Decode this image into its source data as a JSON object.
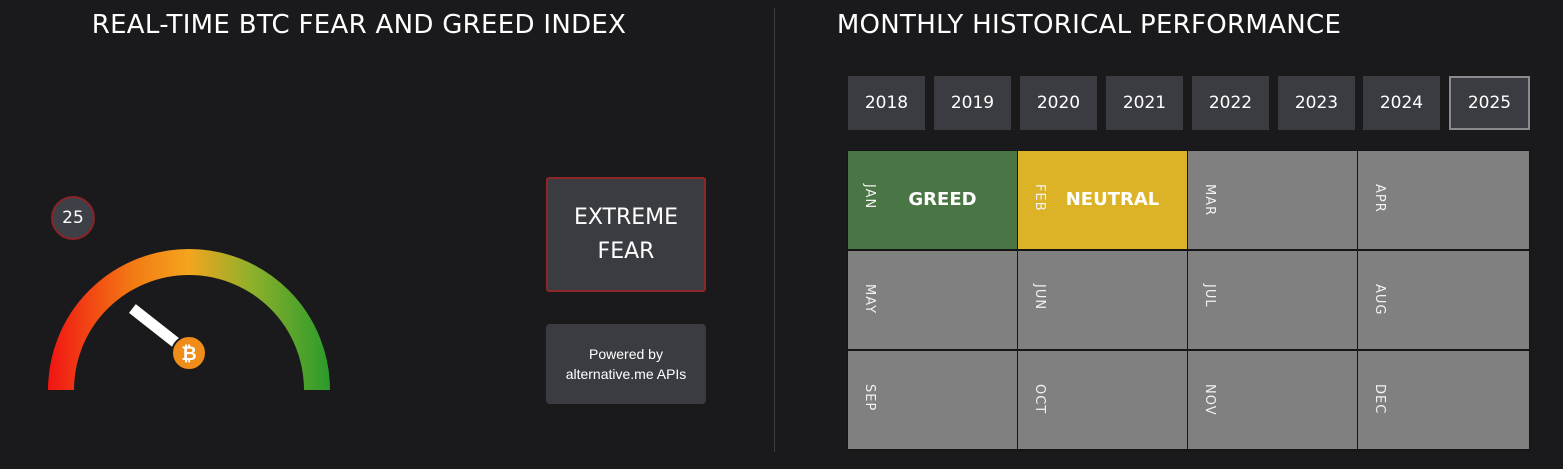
{
  "fear_greed": {
    "title": "REAL-TIME BTC FEAR AND GREED INDEX",
    "value": "25",
    "value_num": 25,
    "scale_max": 100,
    "classification": "EXTREME FEAR",
    "powered_by": "Powered by alternative.me APIs",
    "gauge_colors": [
      "#f01414",
      "#f37a13",
      "#f3a51e",
      "#8fb02b",
      "#2a9b2b"
    ],
    "btc_icon_glyph": "₿",
    "btc_icon_color": "#f08c1a"
  },
  "history": {
    "title": "MONTHLY HISTORICAL PERFORMANCE",
    "years": [
      "2018",
      "2019",
      "2020",
      "2021",
      "2022",
      "2023",
      "2024",
      "2025"
    ],
    "selected_year": "2025",
    "months": [
      {
        "label": "JAN",
        "sentiment": "GREED",
        "color": "#4a7545"
      },
      {
        "label": "FEB",
        "sentiment": "NEUTRAL",
        "color": "#dcb227"
      },
      {
        "label": "MAR",
        "sentiment": "",
        "color": "#808080"
      },
      {
        "label": "APR",
        "sentiment": "",
        "color": "#808080"
      },
      {
        "label": "MAY",
        "sentiment": "",
        "color": "#808080"
      },
      {
        "label": "JUN",
        "sentiment": "",
        "color": "#808080"
      },
      {
        "label": "JUL",
        "sentiment": "",
        "color": "#808080"
      },
      {
        "label": "AUG",
        "sentiment": "",
        "color": "#808080"
      },
      {
        "label": "SEP",
        "sentiment": "",
        "color": "#808080"
      },
      {
        "label": "OCT",
        "sentiment": "",
        "color": "#808080"
      },
      {
        "label": "NOV",
        "sentiment": "",
        "color": "#808080"
      },
      {
        "label": "DEC",
        "sentiment": "",
        "color": "#808080"
      }
    ]
  }
}
